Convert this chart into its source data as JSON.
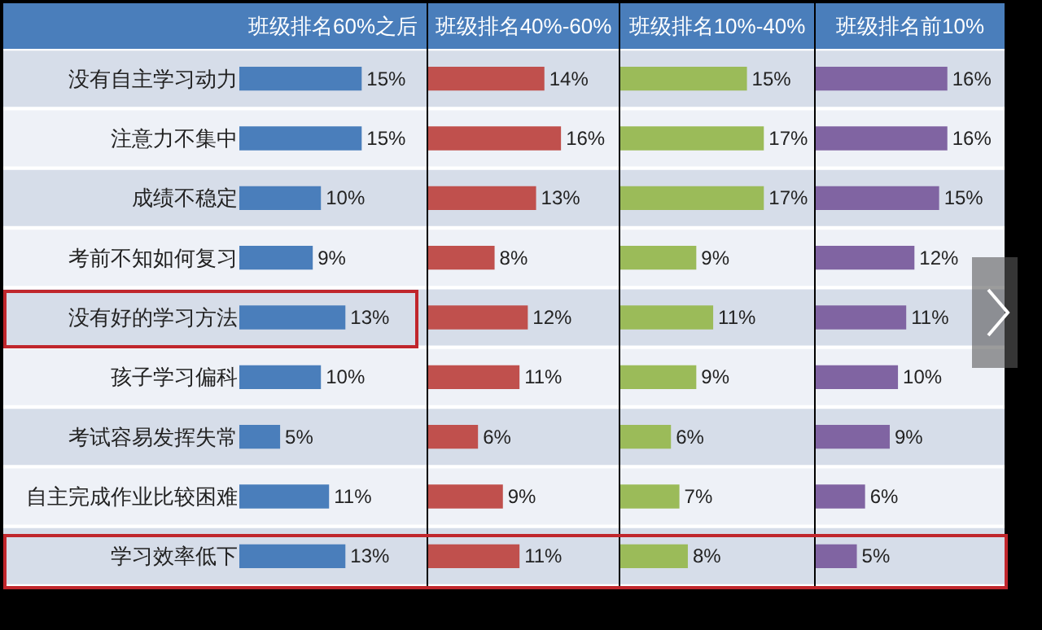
{
  "chart_data": [
    {
      "type": "bar",
      "orientation": "horizontal",
      "title": "班级排名60%之后",
      "categories": [
        "没有自主学习动力",
        "注意力不集中",
        "成绩不稳定",
        "考前不知如何复习",
        "没有好的学习方法",
        "孩子学习偏科",
        "考试容易发挥失常",
        "自主完成作业比较困难",
        "学习效率低下"
      ],
      "values": [
        15,
        15,
        10,
        9,
        13,
        10,
        5,
        11,
        13
      ],
      "value_labels": [
        "15%",
        "15%",
        "10%",
        "9%",
        "13%",
        "10%",
        "5%",
        "11%",
        "13%"
      ],
      "color": "#4a7ebb",
      "tick_labels": "y",
      "grid": false,
      "legend": false
    },
    {
      "type": "bar",
      "orientation": "horizontal",
      "title": "班级排名40%-60%",
      "categories": [
        null,
        null,
        null,
        null,
        null,
        null,
        null,
        null,
        null
      ],
      "values": [
        14,
        16,
        13,
        8,
        12,
        11,
        6,
        9,
        11
      ],
      "value_labels": [
        "14%",
        "16%",
        "13%",
        "8%",
        "12%",
        "11%",
        "6%",
        "9%",
        "11%"
      ],
      "color": "#c0504d",
      "tick_labels": false,
      "grid": false,
      "legend": false
    },
    {
      "type": "bar",
      "orientation": "horizontal",
      "title": "班级排名10%-40%",
      "categories": [
        null,
        null,
        null,
        null,
        null,
        null,
        null,
        null,
        null
      ],
      "values": [
        15,
        17,
        17,
        9,
        11,
        9,
        6,
        7,
        8
      ],
      "value_labels": [
        "15%",
        "17%",
        "17%",
        "9%",
        "11%",
        "9%",
        "6%",
        "7%",
        "8%"
      ],
      "color": "#9bbb59",
      "tick_labels": false,
      "grid": false,
      "legend": false
    },
    {
      "type": "bar",
      "orientation": "horizontal",
      "title": "班级排名前10%",
      "categories": [
        null,
        null,
        null,
        null,
        null,
        null,
        null,
        null,
        null
      ],
      "values": [
        16,
        16,
        15,
        12,
        11,
        10,
        9,
        6,
        5
      ],
      "value_labels": [
        "16%",
        "16%",
        "15%",
        "12%",
        "11%",
        "10%",
        "9%",
        "6%",
        "5%"
      ],
      "color": "#8064a2",
      "tick_labels": false,
      "grid": false,
      "legend": false
    }
  ]
}
